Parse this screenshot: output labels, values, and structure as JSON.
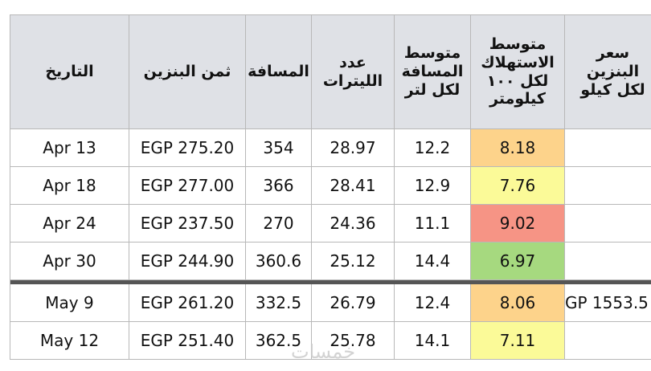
{
  "table": {
    "headers": [
      [
        "التاريخ"
      ],
      [
        "ثمن البنزين"
      ],
      [
        "المسافة"
      ],
      [
        "عدد",
        "الليترات"
      ],
      [
        "متوسط",
        "المسافة",
        "لكل لتر"
      ],
      [
        "متوسط",
        "الاستهلاك",
        "لكل ١٠٠",
        "كيلومتر"
      ],
      [
        "سعر",
        "البنزين",
        "لكل كيلو"
      ]
    ],
    "groups": [
      {
        "rows": [
          [
            "Apr 13",
            "EGP 275.20",
            "354",
            "28.97",
            "12.2",
            "8.18",
            ""
          ],
          [
            "Apr 18",
            "EGP 277.00",
            "366",
            "28.41",
            "12.9",
            "7.76",
            ""
          ],
          [
            "Apr 24",
            "EGP 237.50",
            "270",
            "24.36",
            "11.1",
            "9.02",
            ""
          ],
          [
            "Apr 30",
            "EGP 244.90",
            "360.6",
            "25.12",
            "14.4",
            "6.97",
            ""
          ]
        ],
        "consumption_colors": [
          "#fdd38b",
          "#fbfa98",
          "#f69485",
          "#a6d97f"
        ]
      },
      {
        "rows": [
          [
            "May 9",
            "EGP 261.20",
            "332.5",
            "26.79",
            "12.4",
            "8.06",
            "GP 1553.5"
          ],
          [
            "May 12",
            "EGP 251.40",
            "362.5",
            "25.78",
            "14.1",
            "7.11",
            ""
          ]
        ],
        "consumption_colors": [
          "#fdd38b",
          "#fbfa98"
        ]
      }
    ],
    "watermark": "خمسات"
  }
}
